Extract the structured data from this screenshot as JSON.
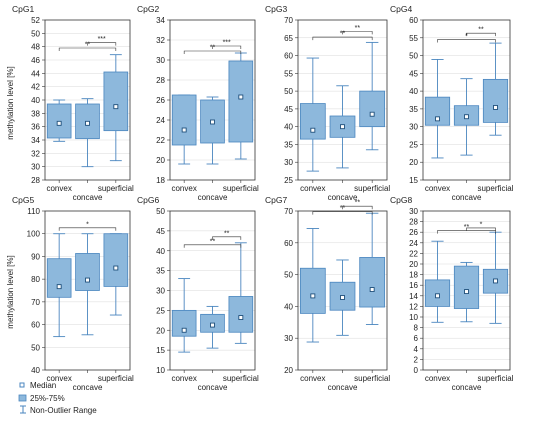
{
  "figure": {
    "ylabel": "methylation level [%]",
    "legend": [
      {
        "label": "Median",
        "symbol": "square"
      },
      {
        "label": "25%-75%",
        "symbol": "box"
      },
      {
        "label": "Non-Outlier Range",
        "symbol": "whisker"
      }
    ]
  },
  "colors": {
    "box_fill": "#8DB8DC",
    "box_stroke": "#4A86BF",
    "axis": "#333333",
    "grid": "#d9d9d9"
  },
  "chart_data": [
    {
      "type": "box",
      "title": "CpG1",
      "categories": [
        "convex",
        "concave",
        "superficial"
      ],
      "ylim": [
        28,
        52
      ],
      "yticks": [
        28,
        30,
        32,
        34,
        36,
        38,
        40,
        42,
        44,
        46,
        48,
        50,
        52
      ],
      "boxes": [
        {
          "min": 33.8,
          "q1": 34.3,
          "median": 36.5,
          "q3": 39.4,
          "max": 40.0
        },
        {
          "min": 30.0,
          "q1": 34.2,
          "median": 36.5,
          "q3": 39.4,
          "max": 40.2
        },
        {
          "min": 30.9,
          "q1": 35.4,
          "median": 39.0,
          "q3": 44.2,
          "max": 46.8
        }
      ],
      "brackets": [
        {
          "from": 1,
          "to": 2,
          "label": "***",
          "y": 48.6
        },
        {
          "from": 0,
          "to": 2,
          "label": "**",
          "y": 47.8
        }
      ]
    },
    {
      "type": "box",
      "title": "CpG2",
      "categories": [
        "convex",
        "concave",
        "superficial"
      ],
      "ylim": [
        18,
        34
      ],
      "yticks": [
        18,
        20,
        22,
        24,
        26,
        28,
        30,
        32,
        34
      ],
      "boxes": [
        {
          "min": 19.6,
          "q1": 21.5,
          "median": 23.0,
          "q3": 26.5,
          "max": 26.5
        },
        {
          "min": 19.6,
          "q1": 21.7,
          "median": 23.8,
          "q3": 26.0,
          "max": 26.3
        },
        {
          "min": 20.1,
          "q1": 21.8,
          "median": 26.3,
          "q3": 29.9,
          "max": 30.7
        }
      ],
      "brackets": [
        {
          "from": 1,
          "to": 2,
          "label": "***",
          "y": 31.4
        },
        {
          "from": 0,
          "to": 2,
          "label": "**",
          "y": 30.9
        }
      ]
    },
    {
      "type": "box",
      "title": "CpG3",
      "categories": [
        "convex",
        "concave",
        "superficial"
      ],
      "ylim": [
        25,
        70
      ],
      "yticks": [
        25,
        30,
        35,
        40,
        45,
        50,
        55,
        60,
        65,
        70
      ],
      "boxes": [
        {
          "min": 27.5,
          "q1": 36.5,
          "median": 39.0,
          "q3": 46.5,
          "max": 59.3
        },
        {
          "min": 28.4,
          "q1": 37.0,
          "median": 40.0,
          "q3": 43.0,
          "max": 51.5
        },
        {
          "min": 33.5,
          "q1": 40.0,
          "median": 43.5,
          "q3": 50.0,
          "max": 63.7
        }
      ],
      "brackets": [
        {
          "from": 1,
          "to": 2,
          "label": "**",
          "y": 66.8
        },
        {
          "from": 0,
          "to": 2,
          "label": "**",
          "y": 65.2
        }
      ]
    },
    {
      "type": "box",
      "title": "CpG4",
      "categories": [
        "convex",
        "concave",
        "superficial"
      ],
      "ylim": [
        15,
        60
      ],
      "yticks": [
        15,
        20,
        25,
        30,
        35,
        40,
        45,
        50,
        55,
        60
      ],
      "boxes": [
        {
          "min": 21.2,
          "q1": 30.4,
          "median": 32.2,
          "q3": 38.3,
          "max": 48.9
        },
        {
          "min": 22.0,
          "q1": 30.4,
          "median": 32.8,
          "q3": 35.9,
          "max": 43.5
        },
        {
          "min": 27.6,
          "q1": 31.2,
          "median": 35.4,
          "q3": 43.3,
          "max": 53.5
        }
      ],
      "brackets": [
        {
          "from": 1,
          "to": 2,
          "label": "**",
          "y": 56.3
        },
        {
          "from": 0,
          "to": 2,
          "label": "*",
          "y": 54.5
        }
      ]
    },
    {
      "type": "box",
      "title": "CpG5",
      "categories": [
        "convex",
        "concave",
        "superficial"
      ],
      "ylim": [
        40,
        110
      ],
      "yticks": [
        40,
        50,
        60,
        70,
        80,
        90,
        100,
        110
      ],
      "boxes": [
        {
          "min": 54.7,
          "q1": 72.0,
          "median": 76.7,
          "q3": 89.0,
          "max": 100.0
        },
        {
          "min": 55.5,
          "q1": 75.0,
          "median": 79.6,
          "q3": 91.3,
          "max": 100.0
        },
        {
          "min": 64.2,
          "q1": 76.8,
          "median": 84.9,
          "q3": 100.0,
          "max": 100.0
        }
      ],
      "brackets": [
        {
          "from": 0,
          "to": 2,
          "label": "*",
          "y": 102.6
        }
      ]
    },
    {
      "type": "box",
      "title": "CpG6",
      "categories": [
        "convex",
        "concave",
        "superficial"
      ],
      "ylim": [
        10,
        50
      ],
      "yticks": [
        10,
        15,
        20,
        25,
        30,
        35,
        40,
        45,
        50
      ],
      "boxes": [
        {
          "min": 14.5,
          "q1": 18.5,
          "median": 20.0,
          "q3": 25.0,
          "max": 33.0
        },
        {
          "min": 15.5,
          "q1": 19.5,
          "median": 21.3,
          "q3": 24.0,
          "max": 26.0
        },
        {
          "min": 16.7,
          "q1": 19.5,
          "median": 23.2,
          "q3": 28.5,
          "max": 42.0
        }
      ],
      "brackets": [
        {
          "from": 1,
          "to": 2,
          "label": "**",
          "y": 43.5
        },
        {
          "from": 0,
          "to": 2,
          "label": "**",
          "y": 41.5
        }
      ]
    },
    {
      "type": "box",
      "title": "CpG7",
      "categories": [
        "convex",
        "concave",
        "superficial"
      ],
      "ylim": [
        20,
        70
      ],
      "yticks": [
        20,
        30,
        40,
        50,
        60,
        70
      ],
      "boxes": [
        {
          "min": 28.8,
          "q1": 37.8,
          "median": 43.3,
          "q3": 52.0,
          "max": 64.5
        },
        {
          "min": 30.9,
          "q1": 38.8,
          "median": 42.8,
          "q3": 47.6,
          "max": 54.6
        },
        {
          "min": 34.3,
          "q1": 39.8,
          "median": 45.3,
          "q3": 55.4,
          "max": 69.3
        }
      ],
      "brackets": [
        {
          "from": 1,
          "to": 2,
          "label": "**",
          "y": 71.5
        },
        {
          "from": 0,
          "to": 2,
          "label": "**",
          "y": 69.8
        }
      ]
    },
    {
      "type": "box",
      "title": "CpG8",
      "categories": [
        "convex",
        "concave",
        "superficial"
      ],
      "ylim": [
        0,
        30
      ],
      "yticks": [
        0,
        2,
        4,
        6,
        8,
        10,
        12,
        14,
        16,
        18,
        20,
        22,
        24,
        26,
        28,
        30
      ],
      "boxes": [
        {
          "min": 9.0,
          "q1": 12.0,
          "median": 14.0,
          "q3": 17.0,
          "max": 24.3
        },
        {
          "min": 9.1,
          "q1": 11.6,
          "median": 14.8,
          "q3": 19.6,
          "max": 20.3
        },
        {
          "min": 8.8,
          "q1": 14.5,
          "median": 16.8,
          "q3": 19.0,
          "max": 26.0
        }
      ],
      "brackets": [
        {
          "from": 1,
          "to": 2,
          "label": "*",
          "y": 26.8
        },
        {
          "from": 0,
          "to": 2,
          "label": "**",
          "y": 26.3
        }
      ]
    }
  ]
}
